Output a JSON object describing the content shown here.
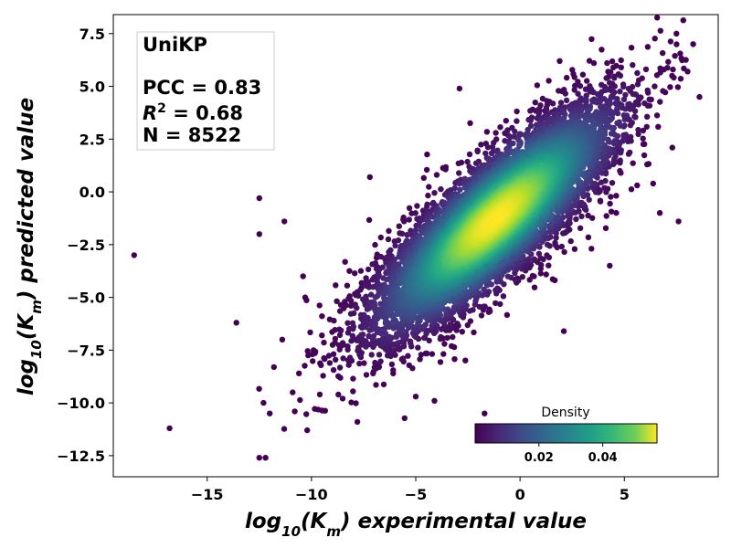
{
  "chart_data": {
    "type": "scatter",
    "xlabel": "log10(Km) experimental value",
    "ylabel": "log10(Km) predicted value",
    "xlim": [
      -19.5,
      9.5
    ],
    "ylim": [
      -13.5,
      8.4
    ],
    "x_ticks": [
      -15,
      -10,
      -5,
      0,
      5
    ],
    "y_ticks": [
      -12.5,
      -10.0,
      -7.5,
      -5.0,
      -2.5,
      0.0,
      2.5,
      5.0,
      7.5
    ],
    "x_tick_labels": [
      "−15",
      "−10",
      "−5",
      "0",
      "5"
    ],
    "y_tick_labels": [
      "−12.5",
      "−10.0",
      "−7.5",
      "−5.0",
      "−2.5",
      "0.0",
      "2.5",
      "5.0",
      "7.5"
    ],
    "color_by": "Density",
    "colormap": "viridis",
    "colorbar": {
      "title": "Density",
      "range": [
        0.0,
        0.057
      ],
      "ticks": [
        0.02,
        0.04
      ],
      "tick_labels": [
        "0.02",
        "0.04"
      ],
      "placement": "lower-right"
    },
    "annotation": {
      "model": "UniKP",
      "pcc_text": "PCC = 0.83",
      "r2_value_text": " = 0.68",
      "n_text": "N = 8522",
      "placement": "top-left"
    },
    "summary": {
      "n": 8522,
      "pcc": 0.83,
      "r2": 0.68,
      "center": [
        -1.2,
        -1.3
      ]
    },
    "outliers": [
      {
        "x": -18.5,
        "y": -3.0
      },
      {
        "x": -16.8,
        "y": -11.2
      },
      {
        "x": -13.6,
        "y": -6.2
      },
      {
        "x": -12.5,
        "y": -0.3
      },
      {
        "x": -12.5,
        "y": -2.0
      },
      {
        "x": -12.3,
        "y": -10.0
      },
      {
        "x": -12.0,
        "y": -10.5
      },
      {
        "x": -12.5,
        "y": -12.6
      },
      {
        "x": -12.2,
        "y": -12.6
      },
      {
        "x": -11.8,
        "y": -8.3
      },
      {
        "x": -11.4,
        "y": -7.0
      },
      {
        "x": -11.3,
        "y": -1.4
      },
      {
        "x": -10.9,
        "y": -9.5
      },
      {
        "x": -10.8,
        "y": -10.4
      },
      {
        "x": -10.6,
        "y": -8.6
      },
      {
        "x": -10.4,
        "y": -4.0
      },
      {
        "x": -10.3,
        "y": -5.0
      },
      {
        "x": -9.9,
        "y": -7.5
      },
      {
        "x": -9.6,
        "y": -9.6
      },
      {
        "x": -9.5,
        "y": -6.8
      },
      {
        "x": -7.8,
        "y": -10.9
      },
      {
        "x": -7.2,
        "y": 0.7
      },
      {
        "x": -5.0,
        "y": -9.7
      },
      {
        "x": -4.1,
        "y": -9.9
      },
      {
        "x": -1.7,
        "y": -10.5
      },
      {
        "x": 7.5,
        "y": 7.5
      },
      {
        "x": 8.3,
        "y": 7.0
      },
      {
        "x": 8.6,
        "y": 4.5
      },
      {
        "x": 7.6,
        "y": -1.4
      },
      {
        "x": 6.7,
        "y": -1.0
      },
      {
        "x": 7.3,
        "y": 2.1
      },
      {
        "x": 6.9,
        "y": 5.8
      },
      {
        "x": 1.9,
        "y": 6.2
      },
      {
        "x": -2.9,
        "y": 4.9
      },
      {
        "x": 4.3,
        "y": -3.5
      },
      {
        "x": 2.1,
        "y": -6.6
      }
    ]
  }
}
